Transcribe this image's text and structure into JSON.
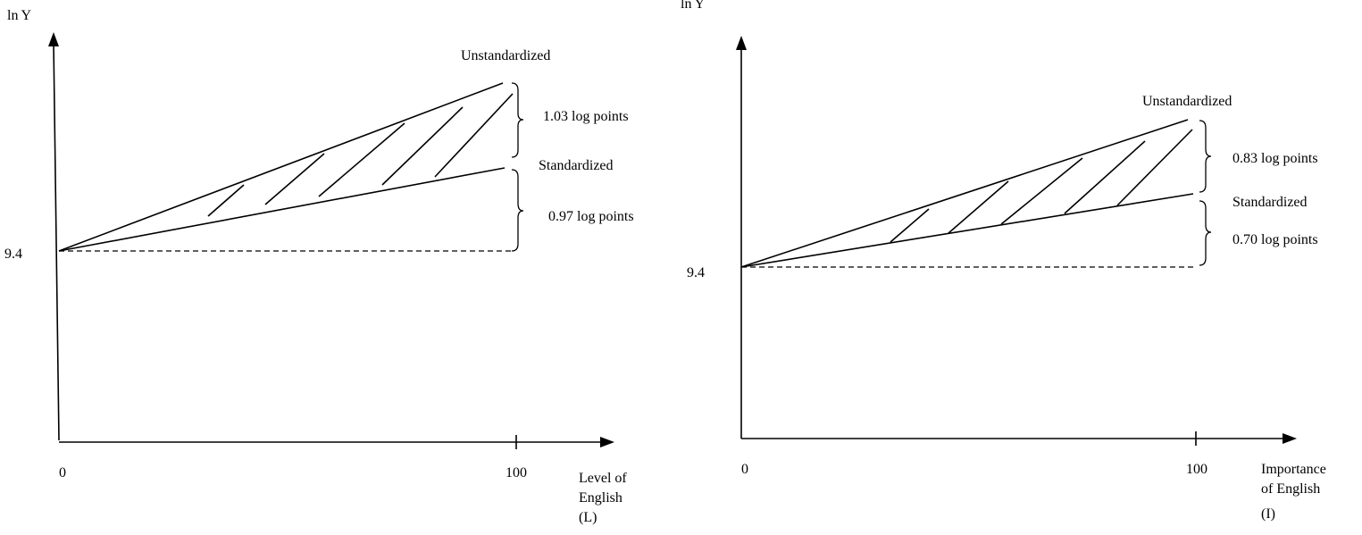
{
  "panels": [
    {
      "y_axis_label_prefix": "ln",
      "y_axis_label_var": "Y",
      "intercept_label": "9.4",
      "x_origin_label": "0",
      "x_end_label": "100",
      "x_axis_label_lines": [
        "Level of",
        "English"
      ],
      "x_axis_var": "L",
      "unstandardized_label": "Unstandardized",
      "standardized_label": "Standardized",
      "upper_gap_label": "1.03 log points",
      "lower_gap_label": "0.97 log points",
      "values": {
        "intercept": 9.4,
        "x_max": 100,
        "unstandardized_gain": 1.03,
        "standardized_gain": 0.97
      }
    },
    {
      "y_axis_label_prefix": "ln",
      "y_axis_label_var": "Y",
      "intercept_label": "9.4",
      "x_origin_label": "0",
      "x_end_label": "100",
      "x_axis_label_lines": [
        "Importance",
        "of English"
      ],
      "x_axis_var": "I",
      "unstandardized_label": "Unstandardized",
      "standardized_label": "Standardized",
      "upper_gap_label": "0.83 log points",
      "lower_gap_label": "0.70 log points",
      "values": {
        "intercept": 9.4,
        "x_max": 100,
        "unstandardized_gain": 0.83,
        "standardized_gain": 0.7
      }
    }
  ]
}
